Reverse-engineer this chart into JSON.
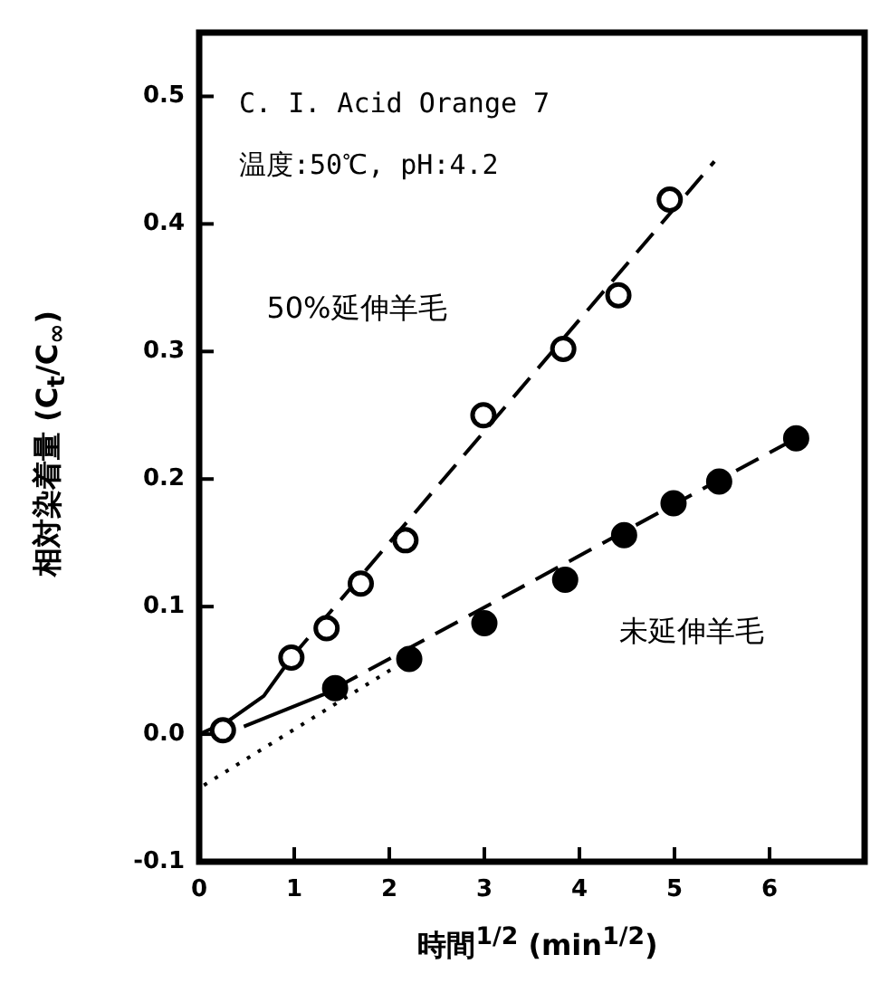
{
  "chart_data": {
    "type": "scatter",
    "xlabel": "時間$^{1/2}$ (min$^{1/2}$)",
    "ylabel": "相対染着量 (C$_{t}$/C$_{∞}$)",
    "annotations": [
      "C. I. Acid Orange 7",
      "温度:50℃, pH:4.2"
    ],
    "xlim": [
      0,
      7
    ],
    "xticks": [
      0,
      1,
      2,
      3,
      4,
      5,
      6
    ],
    "ylim": [
      -0.1,
      0.55
    ],
    "yticks": [
      -0.1,
      {
        "value": 0,
        "label": "0.0"
      },
      0.1,
      0.2,
      0.3,
      0.4,
      0.5
    ],
    "grid": false,
    "legend": false,
    "series": [
      {
        "name": "50%延伸羊毛",
        "type": "scatter",
        "marker": "circle",
        "color": "#ffffff",
        "x": [
          0.25,
          0.97,
          1.34,
          1.7,
          2.17,
          2.99,
          3.83,
          4.41,
          4.95
        ],
        "values": [
          0.003,
          0.06,
          0.083,
          0.118,
          0.152,
          0.25,
          0.302,
          0.344,
          0.419
        ]
      },
      {
        "name": "未延伸羊毛",
        "type": "scatter",
        "marker": "circle",
        "color": "#000000",
        "x": [
          1.43,
          2.21,
          3.0,
          3.85,
          4.47,
          4.99,
          5.47,
          6.28
        ],
        "values": [
          0.036,
          0.059,
          0.087,
          0.121,
          0.156,
          0.181,
          0.198,
          0.232
        ]
      },
      {
        "type": "line",
        "line_style": "dashed",
        "color": "#000000",
        "x": [
          0.97,
          5.42
        ],
        "values": [
          0.06,
          0.449
        ]
      },
      {
        "type": "line",
        "line_style": "solid",
        "color": "#000000",
        "x": [
          0,
          0.3,
          0.68,
          0.97
        ],
        "values": [
          0,
          0.01,
          0.03,
          0.06
        ]
      },
      {
        "type": "line",
        "line_style": "solid",
        "color": "#000000",
        "x": [
          0.47,
          1.37
        ],
        "values": [
          0.006,
          0.033
        ]
      },
      {
        "type": "line",
        "line_style": "dashed",
        "color": "#000000",
        "x": [
          1.43,
          6.28
        ],
        "values": [
          0.036,
          0.232
        ]
      },
      {
        "type": "line",
        "line_style": "dotted",
        "color": "#000000",
        "x": [
          0.05,
          2.2
        ],
        "values": [
          -0.04,
          0.059
        ]
      }
    ]
  }
}
